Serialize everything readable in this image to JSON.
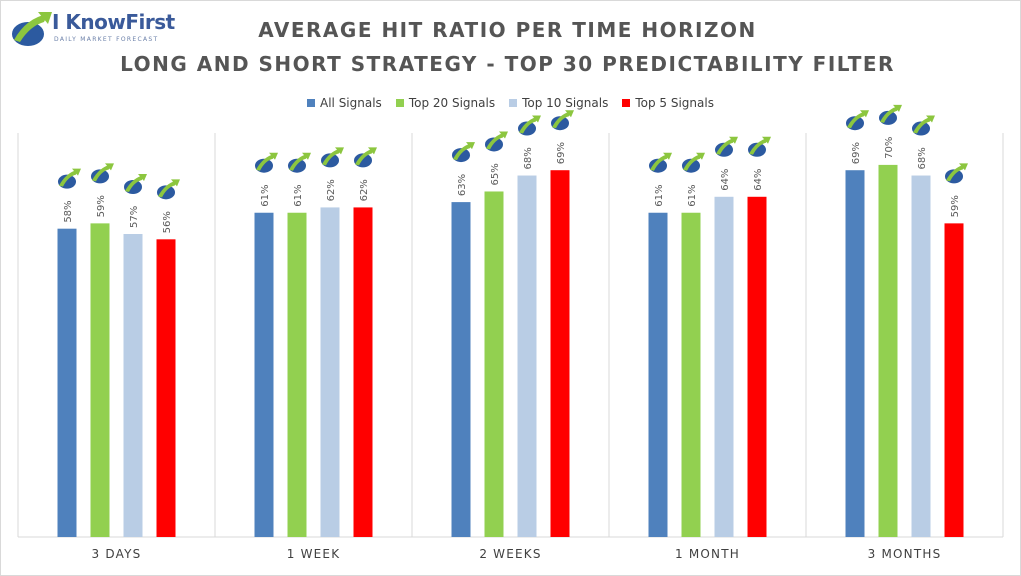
{
  "title_line1": "AVERAGE HIT RATIO PER TIME HORIZON",
  "title_line2": "LONG AND SHORT STRATEGY - TOP 30 PREDICTABILITY FILTER",
  "logo": {
    "name": "I KnowFirst",
    "tagline": "DAILY MARKET FORECAST"
  },
  "colors": {
    "all": "#4f81bd",
    "top20": "#92d050",
    "top10": "#b9cde5",
    "top5": "#ff0000"
  },
  "chart_data": {
    "type": "bar",
    "title": "AVERAGE HIT RATIO PER TIME HORIZON - LONG AND SHORT STRATEGY - TOP 30 PREDICTABILITY FILTER",
    "categories": [
      "3 DAYS",
      "1 WEEK",
      "2 WEEKS",
      "1 MONTH",
      "3 MONTHS"
    ],
    "series": [
      {
        "name": "All Signals",
        "color": "#4f81bd",
        "values": [
          58,
          61,
          63,
          61,
          69
        ]
      },
      {
        "name": "Top 20 Signals",
        "color": "#92d050",
        "values": [
          59,
          61,
          65,
          61,
          70
        ]
      },
      {
        "name": "Top 10 Signals",
        "color": "#b9cde5",
        "values": [
          57,
          62,
          68,
          64,
          68
        ]
      },
      {
        "name": "Top 5 Signals",
        "color": "#ff0000",
        "values": [
          56,
          62,
          69,
          64,
          59
        ]
      }
    ],
    "value_suffix": "%",
    "ylim": [
      0,
      76
    ],
    "legend": "top",
    "grid": false
  }
}
